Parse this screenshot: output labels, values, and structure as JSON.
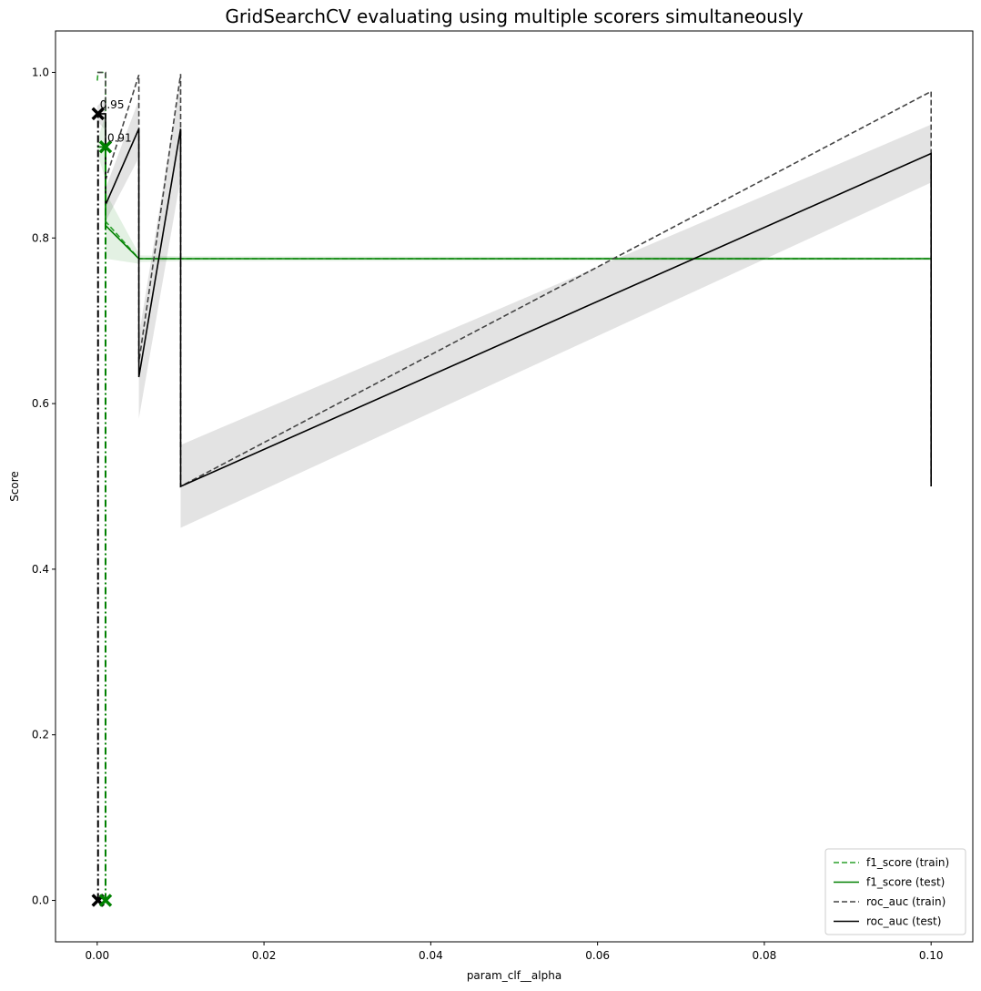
{
  "chart_data": {
    "type": "line",
    "title": "GridSearchCV evaluating using multiple scorers simultaneously",
    "xlabel": "param_clf__alpha",
    "ylabel": "Score",
    "xlim": [
      -0.005,
      0.105
    ],
    "ylim": [
      -0.05,
      1.05
    ],
    "x_ticks": [
      0.0,
      0.02,
      0.04,
      0.06,
      0.08,
      0.1
    ],
    "x_tick_labels": [
      "0.00",
      "0.02",
      "0.04",
      "0.06",
      "0.08",
      "0.10"
    ],
    "y_ticks": [
      0.0,
      0.2,
      0.4,
      0.6,
      0.8,
      1.0
    ],
    "y_tick_labels": [
      "0.0",
      "0.2",
      "0.4",
      "0.6",
      "0.8",
      "1.0"
    ],
    "grid": false,
    "legend_position": "bottom-right",
    "series": [
      {
        "name": "f1_score (train)",
        "color": "#2ca02c",
        "linestyle": "dashed",
        "x": [
          1e-05,
          0.0001,
          0.0001,
          0.001,
          0.001,
          0.005,
          0.005,
          0.01,
          0.01,
          0.1,
          0.1
        ],
        "y": [
          0.99,
          1.0,
          1.0,
          1.0,
          0.82,
          0.775,
          0.775,
          0.775,
          0.775,
          0.775,
          0.775
        ]
      },
      {
        "name": "f1_score (test)",
        "color": "#008000",
        "linestyle": "solid",
        "x": [
          1e-05,
          0.0001,
          0.0001,
          0.001,
          0.001,
          0.005,
          0.005,
          0.01,
          0.01,
          0.1,
          0.1
        ],
        "y": [
          0.91,
          0.91,
          0.91,
          0.91,
          0.815,
          0.775,
          0.775,
          0.775,
          0.775,
          0.775,
          0.775
        ],
        "std_band": [
          0.01,
          0.01,
          0.01,
          0.04,
          0.04,
          0.006,
          0.004,
          0.003,
          0.003,
          0.002,
          0.002
        ]
      },
      {
        "name": "roc_auc (train)",
        "color": "#444444",
        "linestyle": "dashed",
        "x": [
          1e-05,
          0.0001,
          0.0001,
          0.001,
          0.001,
          0.005,
          0.005,
          0.01,
          0.01,
          0.1,
          0.1
        ],
        "y": [
          1.0,
          1.0,
          1.0,
          1.0,
          0.87,
          0.997,
          0.65,
          0.998,
          0.5,
          0.977,
          0.5
        ]
      },
      {
        "name": "roc_auc (test)",
        "color": "#000000",
        "linestyle": "solid",
        "x": [
          1e-05,
          0.0001,
          0.0001,
          0.001,
          0.001,
          0.005,
          0.005,
          0.01,
          0.01,
          0.1,
          0.1
        ],
        "y": [
          0.95,
          0.95,
          0.95,
          0.95,
          0.84,
          0.932,
          0.632,
          0.932,
          0.5,
          0.902,
          0.5
        ],
        "std_band": [
          0.01,
          0.01,
          0.01,
          0.02,
          0.02,
          0.035,
          0.05,
          0.06,
          0.05,
          0.035,
          0.035
        ]
      }
    ],
    "best_markers": [
      {
        "scorer": "roc_auc",
        "x": 0.0001,
        "y": 0.95,
        "label": "0.95",
        "color": "#000000"
      },
      {
        "scorer": "f1_score",
        "x": 0.001,
        "y": 0.91,
        "label": "0.91",
        "color": "#008000"
      }
    ],
    "best_vlines": [
      {
        "scorer": "roc_auc",
        "x": 0.0001,
        "y_to": 0.95,
        "color": "#000000"
      },
      {
        "scorer": "f1_score",
        "x": 0.001,
        "y_to": 0.91,
        "color": "#008000"
      }
    ]
  }
}
